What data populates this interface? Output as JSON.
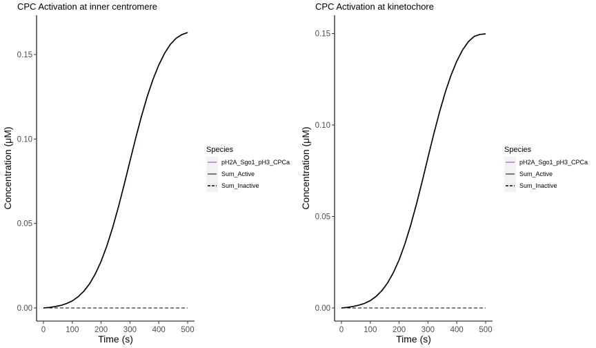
{
  "chart_data": [
    {
      "type": "line",
      "title": "CPC Activation at inner centromere",
      "xlabel": "Time (s)",
      "ylabel": "Concentration (μM)",
      "xlim": [
        0,
        500
      ],
      "ylim": [
        0,
        0.17
      ],
      "xticks": [
        0,
        100,
        200,
        300,
        400,
        500
      ],
      "xtick_labels": [
        "0",
        "100",
        "200",
        "300",
        "400",
        "500"
      ],
      "yticks": [
        0.0,
        0.05,
        0.1,
        0.15
      ],
      "ytick_labels": [
        "0.00",
        "0.05",
        "0.10",
        "0.15"
      ],
      "grid": false,
      "legend": {
        "title": "Species",
        "position": "right",
        "entries": [
          {
            "label": "pH2A_Sgo1_pH3_CPCa",
            "color": "#9932cc",
            "dash": "solid"
          },
          {
            "label": "Sum_Active",
            "color": "#000000",
            "dash": "solid"
          },
          {
            "label": "Sum_Inactive",
            "color": "#000000",
            "dash": "dashed"
          }
        ]
      },
      "x": [
        0,
        20,
        40,
        60,
        80,
        100,
        120,
        140,
        160,
        180,
        200,
        220,
        240,
        260,
        280,
        300,
        320,
        340,
        360,
        380,
        400,
        420,
        440,
        460,
        480,
        500
      ],
      "series": [
        {
          "name": "pH2A_Sgo1_pH3_CPCa",
          "color": "#9932cc",
          "dash": "solid",
          "values": [
            0.0,
            0.0003,
            0.0008,
            0.0015,
            0.0026,
            0.0042,
            0.0066,
            0.0099,
            0.0143,
            0.0202,
            0.0276,
            0.0368,
            0.0476,
            0.0598,
            0.0731,
            0.0869,
            0.1006,
            0.1135,
            0.1252,
            0.1353,
            0.1438,
            0.1507,
            0.156,
            0.1596,
            0.1618,
            0.163
          ]
        },
        {
          "name": "Sum_Active",
          "color": "#000000",
          "dash": "solid",
          "values": [
            0.0,
            0.0003,
            0.0008,
            0.0015,
            0.0026,
            0.0042,
            0.0066,
            0.0099,
            0.0143,
            0.0202,
            0.0276,
            0.0368,
            0.0476,
            0.0598,
            0.0731,
            0.0869,
            0.1006,
            0.1135,
            0.1252,
            0.1353,
            0.1438,
            0.1507,
            0.156,
            0.1596,
            0.1618,
            0.163
          ]
        },
        {
          "name": "Sum_Inactive",
          "color": "#000000",
          "dash": "dashed",
          "values": [
            0,
            0,
            0,
            0,
            0,
            0,
            0,
            0,
            0,
            0,
            0,
            0,
            0,
            0,
            0,
            0,
            0,
            0,
            0,
            0,
            0,
            0,
            0,
            0,
            0,
            0
          ]
        }
      ]
    },
    {
      "type": "line",
      "title": "CPC Activation at kinetochore",
      "xlabel": "Time (s)",
      "ylabel": "Concentration (μM)",
      "xlim": [
        0,
        500
      ],
      "ylim": [
        0,
        0.157
      ],
      "xticks": [
        0,
        100,
        200,
        300,
        400,
        500
      ],
      "xtick_labels": [
        "0",
        "100",
        "200",
        "300",
        "400",
        "500"
      ],
      "yticks": [
        0.0,
        0.05,
        0.1,
        0.15
      ],
      "ytick_labels": [
        "0.00",
        "0.05",
        "0.10",
        "0.15"
      ],
      "grid": false,
      "legend": {
        "title": "Species",
        "position": "right",
        "entries": [
          {
            "label": "pH2A_Sgo1_pH3_CPCa",
            "color": "#9932cc",
            "dash": "solid"
          },
          {
            "label": "Sum_Active",
            "color": "#000000",
            "dash": "solid"
          },
          {
            "label": "Sum_Inactive",
            "color": "#000000",
            "dash": "dashed"
          }
        ]
      },
      "x": [
        0,
        20,
        40,
        60,
        80,
        100,
        120,
        140,
        160,
        180,
        200,
        220,
        240,
        260,
        280,
        300,
        320,
        340,
        360,
        380,
        400,
        420,
        440,
        460,
        480,
        500
      ],
      "series": [
        {
          "name": "pH2A_Sgo1_pH3_CPCa",
          "color": "#9932cc",
          "dash": "solid",
          "values": [
            0.0,
            0.0003,
            0.0008,
            0.0015,
            0.0025,
            0.004,
            0.0063,
            0.0094,
            0.0137,
            0.0193,
            0.0263,
            0.035,
            0.0452,
            0.0567,
            0.0692,
            0.0822,
            0.095,
            0.107,
            0.1179,
            0.1272,
            0.1349,
            0.141,
            0.1455,
            0.1484,
            0.1495,
            0.1498
          ]
        },
        {
          "name": "Sum_Active",
          "color": "#000000",
          "dash": "solid",
          "values": [
            0.0,
            0.0003,
            0.0008,
            0.0015,
            0.0025,
            0.004,
            0.0063,
            0.0094,
            0.0137,
            0.0193,
            0.0263,
            0.035,
            0.0452,
            0.0567,
            0.0692,
            0.0822,
            0.095,
            0.107,
            0.1179,
            0.1272,
            0.1349,
            0.141,
            0.1455,
            0.1484,
            0.1495,
            0.1498
          ]
        },
        {
          "name": "Sum_Inactive",
          "color": "#000000",
          "dash": "dashed",
          "values": [
            0,
            0,
            0,
            0,
            0,
            0,
            0,
            0,
            0,
            0,
            0,
            0,
            0,
            0,
            0,
            0,
            0,
            0,
            0,
            0,
            0,
            0,
            0,
            0,
            0,
            0
          ]
        }
      ]
    }
  ]
}
